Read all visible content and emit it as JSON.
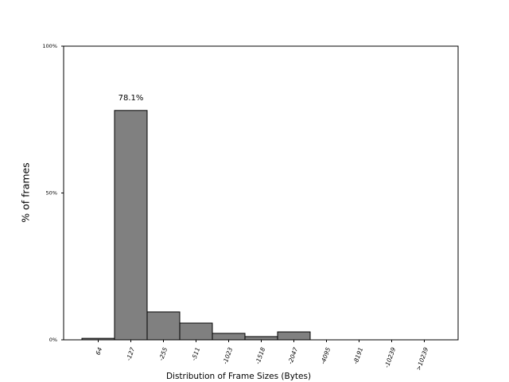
{
  "chart_data": {
    "type": "bar",
    "x_label": "Distribution of Frame Sizes (Bytes)",
    "y_label": "% of frames",
    "categories": [
      "64",
      "-127",
      "-255",
      "-511",
      "-1023",
      "-1518",
      "-2047",
      "-4095",
      "-8191",
      "-10239",
      ">10239"
    ],
    "values": [
      0.5,
      78.1,
      9.5,
      5.7,
      2.2,
      1.1,
      2.7,
      0,
      0,
      0,
      0
    ],
    "value_labels": [
      null,
      "78.1%",
      null,
      null,
      null,
      null,
      null,
      null,
      null,
      null,
      null
    ],
    "color": "#808080",
    "edge_color": "#000000",
    "ylim": [
      0,
      100
    ],
    "yticks": [
      {
        "value": 0,
        "label": "0%"
      },
      {
        "value": 50,
        "label": "50%"
      },
      {
        "value": 100,
        "label": "100%"
      }
    ],
    "grid": false
  }
}
